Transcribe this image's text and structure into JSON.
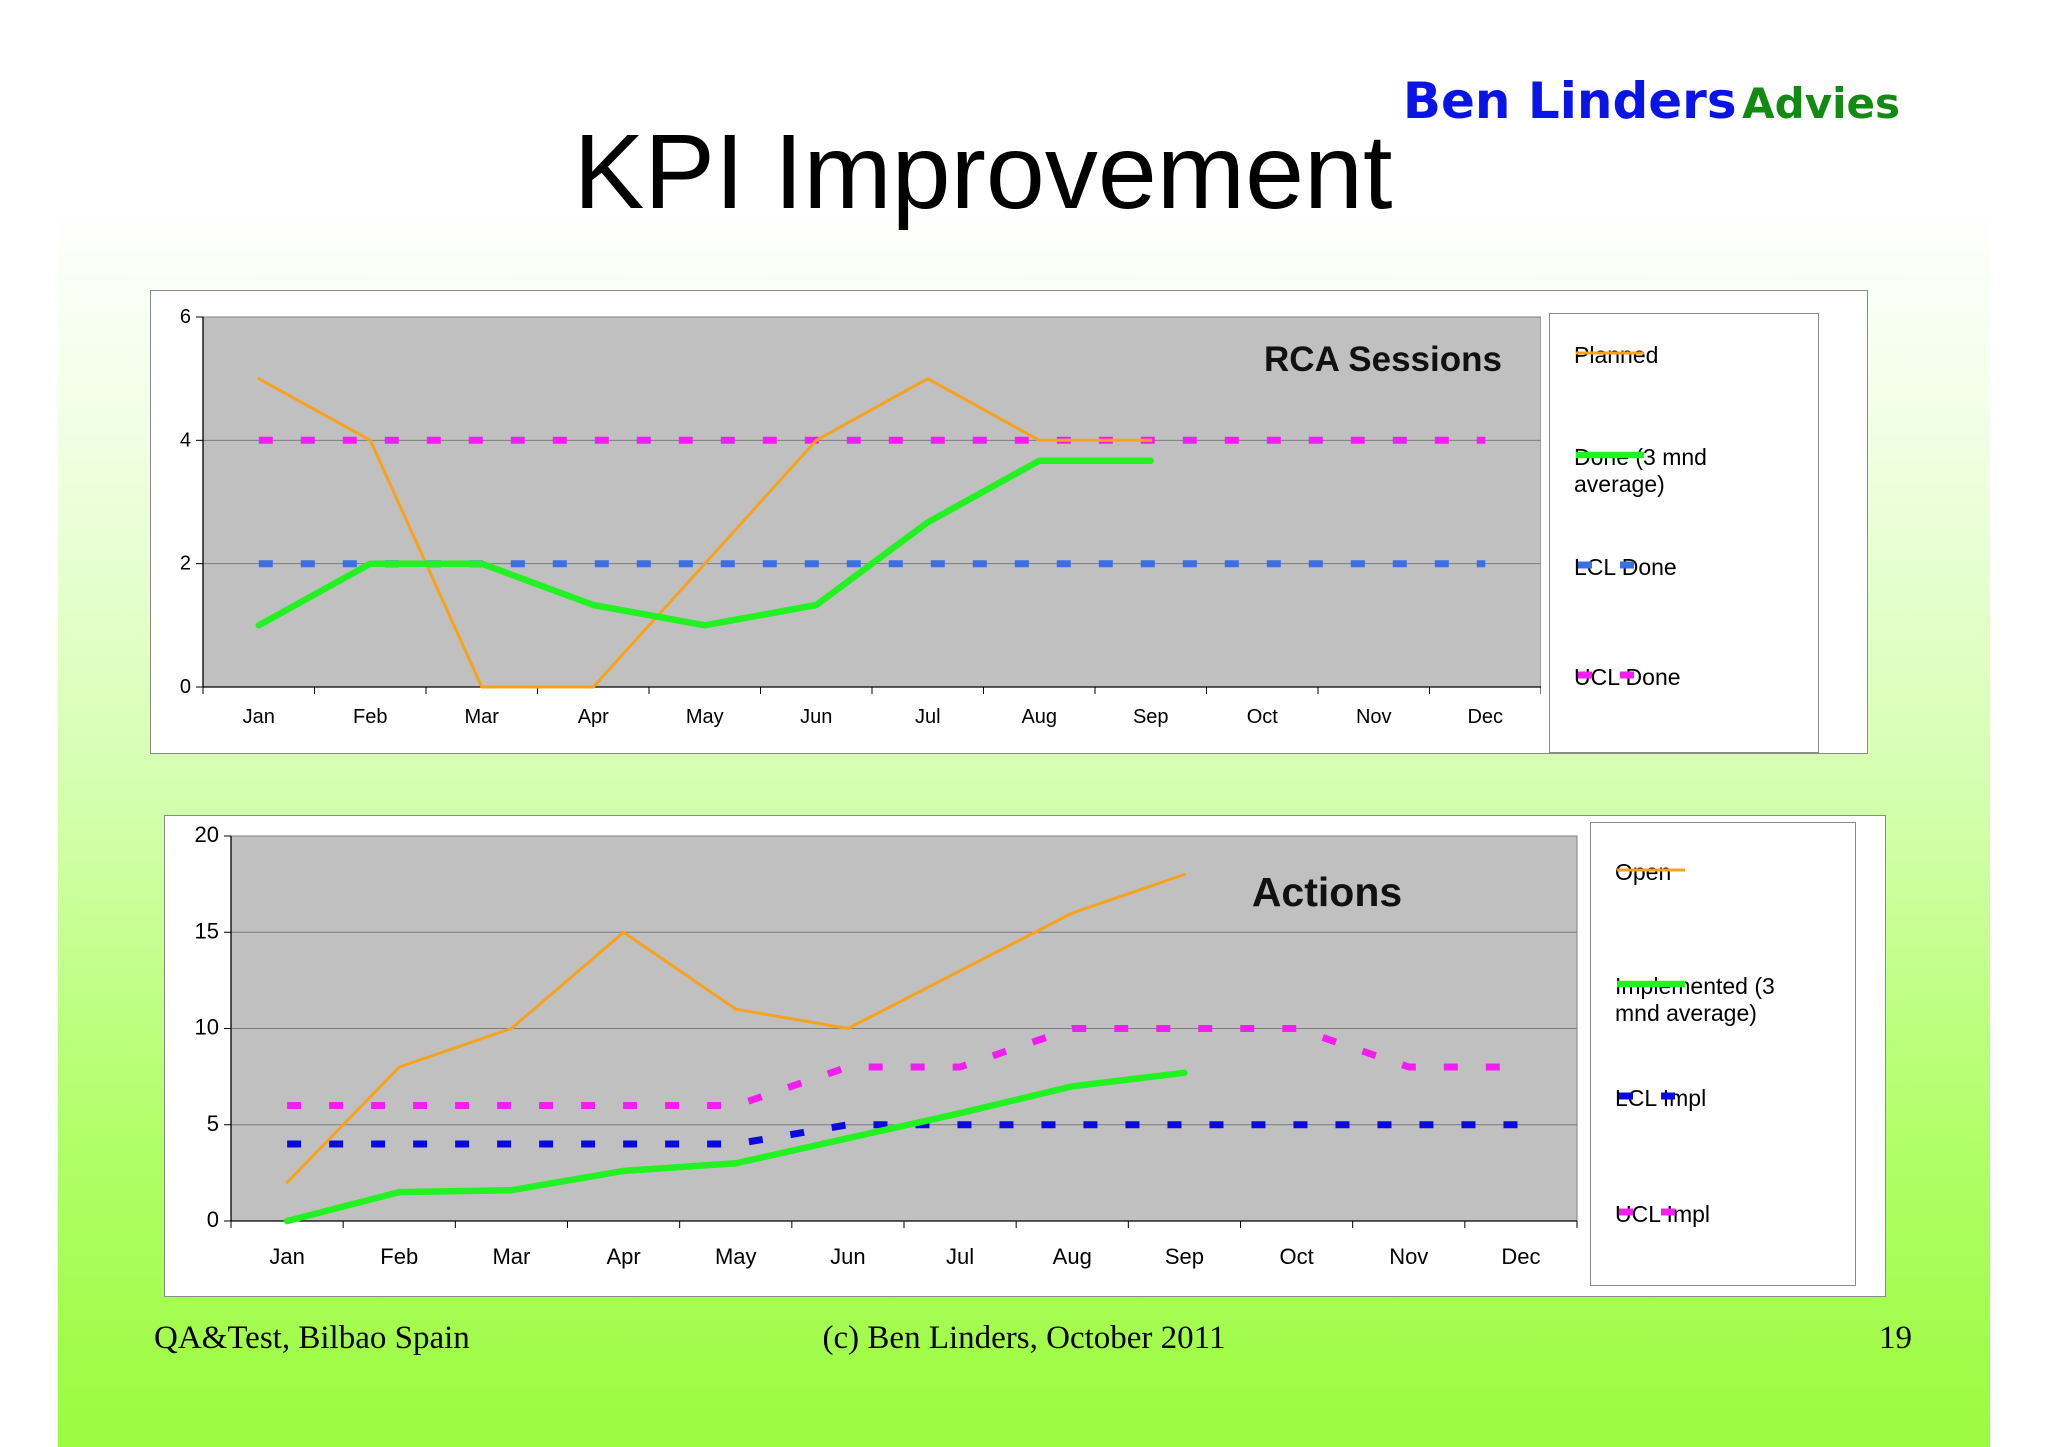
{
  "brand": {
    "name": "Ben Linders",
    "sub": "Advies"
  },
  "title": "KPI Improvement",
  "footer": {
    "left": "QA&Test, Bilbao Spain",
    "center": "(c) Ben Linders, October 2011",
    "right": "19"
  },
  "colors": {
    "orange": "#f7a21c",
    "green": "#22f222",
    "blue_light": "#3a6fe8",
    "blue_dark": "#0a0adf",
    "magenta": "#f21ef0",
    "plot_bg": "#c0c0c0"
  },
  "chart_data": [
    {
      "type": "line",
      "title": "RCA Sessions",
      "categories": [
        "Jan",
        "Feb",
        "Mar",
        "Apr",
        "May",
        "Jun",
        "Jul",
        "Aug",
        "Sep",
        "Oct",
        "Nov",
        "Dec"
      ],
      "ylim": [
        0,
        6
      ],
      "yticks": [
        0,
        2,
        4,
        6
      ],
      "grid": true,
      "legend": "right",
      "series": [
        {
          "name": "Planned",
          "color": "#f7a21c",
          "style": "solid-thin",
          "values": [
            5,
            4,
            0,
            0,
            2,
            4,
            5,
            4,
            4,
            null,
            null,
            null
          ]
        },
        {
          "name": "Done (3 mnd average)",
          "color": "#22f222",
          "style": "solid-thick",
          "values": [
            1,
            2,
            2,
            1.33,
            1,
            1.33,
            2.67,
            3.67,
            3.67,
            null,
            null,
            null
          ]
        },
        {
          "name": "LCL Done",
          "color": "#3a6fe8",
          "style": "dashed",
          "values": [
            2,
            2,
            2,
            2,
            2,
            2,
            2,
            2,
            2,
            2,
            2,
            2
          ]
        },
        {
          "name": "UCL Done",
          "color": "#f21ef0",
          "style": "dashed",
          "values": [
            4,
            4,
            4,
            4,
            4,
            4,
            4,
            4,
            4,
            4,
            4,
            4
          ]
        }
      ]
    },
    {
      "type": "line",
      "title": "Actions",
      "categories": [
        "Jan",
        "Feb",
        "Mar",
        "Apr",
        "May",
        "Jun",
        "Jul",
        "Aug",
        "Sep",
        "Oct",
        "Nov",
        "Dec"
      ],
      "ylim": [
        0,
        20
      ],
      "yticks": [
        0,
        5,
        10,
        15,
        20
      ],
      "grid": true,
      "legend": "right",
      "series": [
        {
          "name": "Open",
          "color": "#f7a21c",
          "style": "solid-thin",
          "values": [
            2,
            8,
            10,
            15,
            11,
            10,
            13,
            16,
            18,
            null,
            null,
            null
          ]
        },
        {
          "name": "Implemented (3 mnd average)",
          "color": "#22f222",
          "style": "solid-thick",
          "values": [
            0,
            1.5,
            1.6,
            2.6,
            3,
            4.3,
            5.6,
            7,
            7.7,
            null,
            null,
            null
          ]
        },
        {
          "name": "LCL Impl",
          "color": "#0a0adf",
          "style": "dashed",
          "values": [
            4,
            4,
            4,
            4,
            4,
            5,
            5,
            5,
            5,
            5,
            5,
            5
          ]
        },
        {
          "name": "UCL Impl",
          "color": "#f21ef0",
          "style": "dashed",
          "values": [
            6,
            6,
            6,
            6,
            6,
            8,
            8,
            10,
            10,
            10,
            8,
            8
          ]
        }
      ]
    }
  ]
}
